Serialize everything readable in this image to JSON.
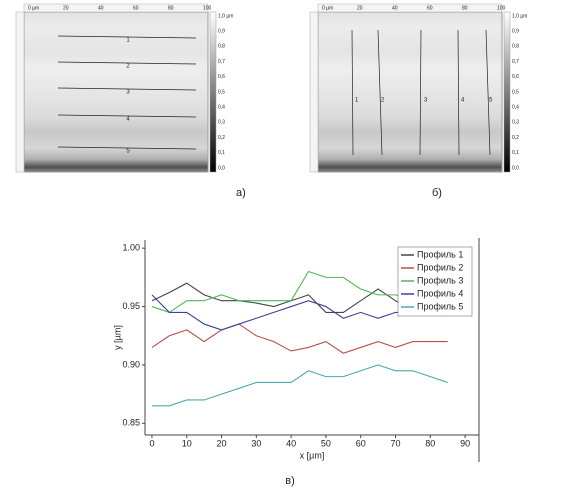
{
  "panels": [
    {
      "label": "а)",
      "ruler_ticks": [
        "0 µm",
        "20",
        "40",
        "60",
        "80",
        "100"
      ],
      "scale_ticks": [
        "1,0 µm",
        "0,9",
        "0,8",
        "0,7",
        "0,6",
        "0,5",
        "0,4",
        "0,3",
        "0,2",
        "0,1",
        "0,0"
      ],
      "profile_labels": [
        "1",
        "2",
        "3",
        "4",
        "5"
      ]
    },
    {
      "label": "б)",
      "ruler_ticks": [
        "0 µm",
        "20",
        "40",
        "60",
        "80",
        "100"
      ],
      "scale_ticks": [
        "1,0 µm",
        "0,9",
        "0,8",
        "0,7",
        "0,6",
        "0,5",
        "0,4",
        "0,3",
        "0,2",
        "0,1",
        "0,0"
      ],
      "profile_labels": [
        "1",
        "2",
        "3",
        "4",
        "5"
      ]
    }
  ],
  "chart_label": "в)",
  "chart_data": {
    "type": "line",
    "xlabel": "x [µm]",
    "ylabel": "y [µm]",
    "x": [
      0,
      5,
      10,
      15,
      20,
      25,
      30,
      35,
      40,
      45,
      50,
      55,
      60,
      65,
      70,
      75,
      80,
      85
    ],
    "series": [
      {
        "name": "Профиль 1",
        "color": "#454545",
        "values": [
          0.955,
          0.962,
          0.97,
          0.96,
          0.955,
          0.955,
          0.953,
          0.95,
          0.955,
          0.96,
          0.945,
          0.945,
          0.955,
          0.965,
          0.955,
          0.945,
          0.945,
          0.942
        ]
      },
      {
        "name": "Профиль 2",
        "color": "#b5504c",
        "values": [
          0.915,
          0.925,
          0.93,
          0.92,
          0.93,
          0.935,
          0.925,
          0.92,
          0.912,
          0.915,
          0.92,
          0.91,
          0.915,
          0.92,
          0.915,
          0.92,
          0.92,
          0.92
        ]
      },
      {
        "name": "Профиль 3",
        "color": "#52b552",
        "values": [
          0.95,
          0.945,
          0.955,
          0.955,
          0.96,
          0.955,
          0.955,
          0.955,
          0.955,
          0.98,
          0.975,
          0.975,
          0.965,
          0.96,
          0.96,
          0.955,
          0.95,
          0.95
        ]
      },
      {
        "name": "Профиль 4",
        "color": "#3f3f99",
        "values": [
          0.96,
          0.945,
          0.945,
          0.935,
          0.93,
          0.935,
          0.94,
          0.945,
          0.95,
          0.955,
          0.95,
          0.94,
          0.945,
          0.94,
          0.945,
          0.945,
          0.95,
          0.955
        ]
      },
      {
        "name": "Профиль 5",
        "color": "#4caaa8",
        "values": [
          0.865,
          0.865,
          0.87,
          0.87,
          0.875,
          0.88,
          0.885,
          0.885,
          0.885,
          0.895,
          0.89,
          0.89,
          0.895,
          0.9,
          0.895,
          0.895,
          0.89,
          0.885
        ]
      }
    ],
    "xlim": [
      -2,
      94
    ],
    "ylim": [
      0.84,
      1.007
    ],
    "xticks": [
      0,
      10,
      20,
      30,
      40,
      50,
      60,
      70,
      80,
      90
    ],
    "yticks": [
      {
        "value": 0.85,
        "label": "0.85"
      },
      {
        "value": 0.9,
        "label": "0.90"
      },
      {
        "value": 0.95,
        "label": "0.95"
      },
      {
        "value": 1.0,
        "label": "1.00"
      }
    ],
    "legend": "upper right"
  }
}
